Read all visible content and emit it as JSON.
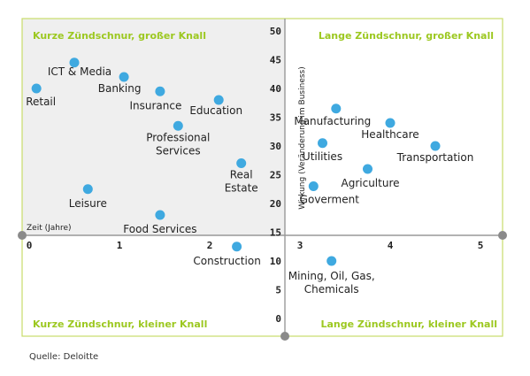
{
  "chart_data": {
    "type": "scatter",
    "title": "",
    "xlabel": "Zeit (Jahre)",
    "ylabel": "Wirkung (Veränderung im Business)",
    "xlim": [
      0,
      5.25
    ],
    "ylim": [
      0,
      50
    ],
    "x_ticks": [
      "0",
      "1",
      "2",
      "3",
      "4",
      "5"
    ],
    "y_ticks": [
      "0",
      "5",
      "10",
      "15",
      "20",
      "25",
      "30",
      "35",
      "40",
      "45",
      "50"
    ],
    "grid": false,
    "quadrants": {
      "top_left": "Kurze Zündschnur, großer Knall",
      "top_right": "Lange Zündschnur, großer Knall",
      "bottom_left": "Kurze Zündschnur, kleiner Knall",
      "bottom_right": "Lange Zündschnur, kleiner Knall"
    },
    "points": [
      {
        "label": "ICT & Media",
        "x": 0.5,
        "y": 44.5
      },
      {
        "label": "Retail",
        "x": 0.08,
        "y": 40.0
      },
      {
        "label": "Banking",
        "x": 1.05,
        "y": 42.0
      },
      {
        "label": "Insurance",
        "x": 1.45,
        "y": 39.5
      },
      {
        "label": "Education",
        "x": 2.1,
        "y": 38.0
      },
      {
        "label": "Professional Services",
        "x": 1.65,
        "y": 33.5
      },
      {
        "label": "Real Estate",
        "x": 2.35,
        "y": 27.0
      },
      {
        "label": "Leisure",
        "x": 0.65,
        "y": 22.5
      },
      {
        "label": "Food Services",
        "x": 1.45,
        "y": 18.0
      },
      {
        "label": "Construction",
        "x": 2.3,
        "y": 12.5
      },
      {
        "label": "Manufacturing",
        "x": 3.4,
        "y": 36.5
      },
      {
        "label": "Healthcare",
        "x": 4.0,
        "y": 34.0
      },
      {
        "label": "Utilities",
        "x": 3.25,
        "y": 30.5
      },
      {
        "label": "Transportation",
        "x": 4.5,
        "y": 30.0
      },
      {
        "label": "Agriculture",
        "x": 3.75,
        "y": 26.0
      },
      {
        "label": "Goverment",
        "x": 3.15,
        "y": 23.0
      },
      {
        "label": "Mining, Oil, Gas, Chemicals",
        "x": 3.35,
        "y": 10.0
      }
    ]
  },
  "colors": {
    "point": "#3fa9e0",
    "quadrant_label": "#9cc820",
    "frame": "#c8dc6a",
    "top_left_fill": "#efefef",
    "axis": "#999999",
    "axis_knob": "#8a8a8a"
  },
  "source": "Quelle: Deloitte"
}
